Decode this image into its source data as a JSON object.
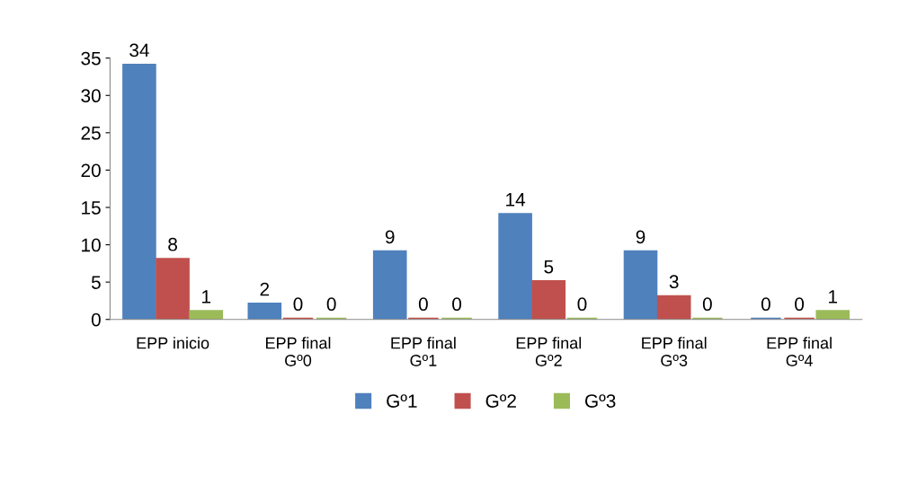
{
  "chart_data": {
    "type": "bar",
    "categories": [
      "EPP inicio",
      "EPP final Gº0",
      "EPP final Gº1",
      "EPP final Gº2",
      "EPP final Gº3",
      "EPP final Gº4"
    ],
    "series": [
      {
        "name": "Gº1",
        "color": "#4f81bd",
        "values": [
          34,
          2,
          9,
          14,
          9,
          0
        ]
      },
      {
        "name": "Gº2",
        "color": "#c0504d",
        "values": [
          8,
          0,
          0,
          5,
          3,
          0
        ]
      },
      {
        "name": "Gº3",
        "color": "#9bbb59",
        "values": [
          1,
          0,
          0,
          0,
          0,
          1
        ]
      }
    ],
    "ylim": [
      0,
      35
    ],
    "yticks": [
      0,
      5,
      10,
      15,
      20,
      25,
      30,
      35
    ],
    "data_labels": true,
    "grid": false,
    "legend": "bottom"
  }
}
